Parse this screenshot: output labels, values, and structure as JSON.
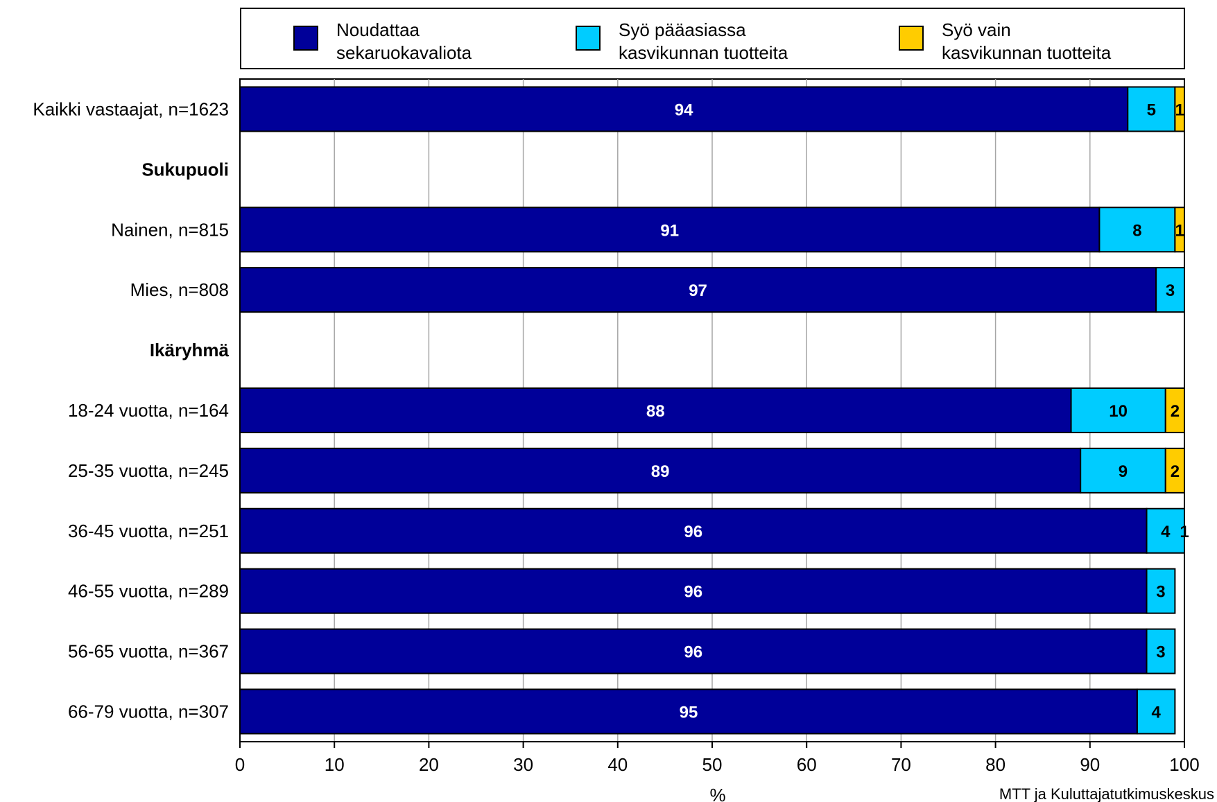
{
  "chart_data": {
    "type": "bar",
    "orientation": "horizontal",
    "stacked": true,
    "xlabel": "%",
    "xlim": [
      0,
      100
    ],
    "x_ticks": [
      0,
      10,
      20,
      30,
      40,
      50,
      60,
      70,
      80,
      90,
      100
    ],
    "grid": true,
    "legend_position": "top",
    "source": "MTT ja Kuluttajatutkimuskeskus",
    "series": [
      {
        "name": "Noudattaa sekaruokavaliota",
        "legend_lines": [
          "Noudattaa",
          "sekaruokavaliota"
        ],
        "color": "#000099",
        "label_color": "#ffffff"
      },
      {
        "name": "Syö pääasiassa kasvikunnan tuotteita",
        "legend_lines": [
          "Syö pääasiassa",
          "kasvikunnan tuotteita"
        ],
        "color": "#00ccff",
        "label_color": "#000000"
      },
      {
        "name": "Syö vain kasvikunnan tuotteita",
        "legend_lines": [
          "Syö vain",
          "kasvikunnan tuotteita"
        ],
        "color": "#ffcc00",
        "label_color": "#000000"
      }
    ],
    "rows": [
      {
        "label": "Kaikki vastaajat, n=1623",
        "values": [
          94,
          5,
          1
        ]
      },
      {
        "label": "Sukupuoli",
        "header": true
      },
      {
        "label": "Nainen, n=815",
        "values": [
          91,
          8,
          1
        ]
      },
      {
        "label": "Mies, n=808",
        "values": [
          97,
          3,
          null
        ]
      },
      {
        "label": "Ikäryhmä",
        "header": true
      },
      {
        "label": "18-24 vuotta, n=164",
        "values": [
          88,
          10,
          2
        ]
      },
      {
        "label": "25-35 vuotta, n=245",
        "values": [
          89,
          9,
          2
        ]
      },
      {
        "label": "36-45 vuotta, n=251",
        "values": [
          96,
          4,
          1
        ]
      },
      {
        "label": "46-55 vuotta, n=289",
        "values": [
          96,
          3,
          null
        ]
      },
      {
        "label": "56-65 vuotta, n=367",
        "values": [
          96,
          3,
          null
        ]
      },
      {
        "label": "66-79 vuotta, n=307",
        "values": [
          95,
          4,
          null
        ]
      }
    ]
  }
}
